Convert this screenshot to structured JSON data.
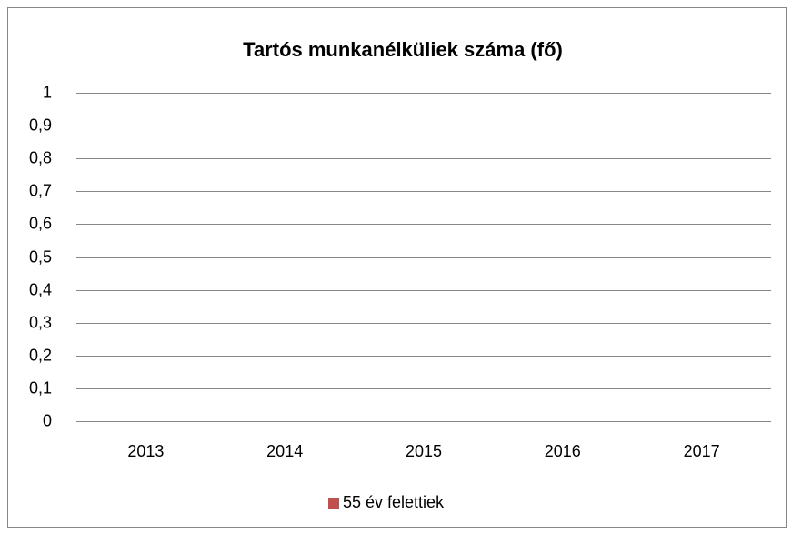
{
  "chart_data": {
    "type": "bar",
    "title": "Tartós munkanélküliek száma (fő)",
    "categories": [
      "2013",
      "2014",
      "2015",
      "2016",
      "2017"
    ],
    "series": [
      {
        "name": "55 év felettiek",
        "color": "#c0504d",
        "values": [
          null,
          null,
          null,
          null,
          null
        ]
      }
    ],
    "ylim": [
      0,
      1
    ],
    "yticks": [
      0,
      {
        "value": 0.1,
        "label": "0,1"
      },
      {
        "value": 0.2,
        "label": "0,2"
      },
      {
        "value": 0.3,
        "label": "0,3"
      },
      {
        "value": 0.4,
        "label": "0,4"
      },
      {
        "value": 0.5,
        "label": "0,5"
      },
      {
        "value": 0.6,
        "label": "0,6"
      },
      {
        "value": 0.7,
        "label": "0,7"
      },
      {
        "value": 0.8,
        "label": "0,8"
      },
      {
        "value": 0.9,
        "label": "0,9"
      },
      1
    ],
    "grid": true,
    "legend": "bottom"
  }
}
